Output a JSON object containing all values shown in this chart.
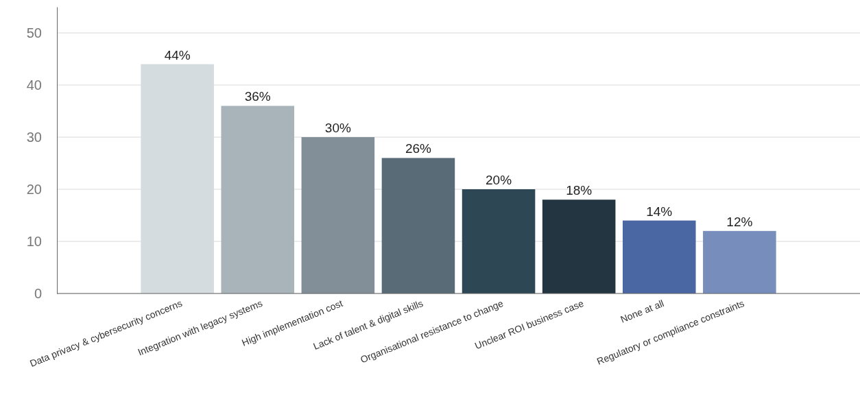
{
  "chart_data": {
    "type": "bar",
    "categories": [
      "Data privacy & cybersecurity concerns",
      "Integration with legacy systems",
      "High implementation cost",
      "Lack of talent & digital skills",
      "Organisational resistance to change",
      "Unclear ROI business case",
      "None at all",
      "Regulatory or compliance constraints"
    ],
    "values": [
      44,
      36,
      30,
      26,
      20,
      18,
      14,
      12
    ],
    "colors": [
      "#d4dcdf",
      "#a9b4ba",
      "#828f99",
      "#5a6b78",
      "#2d4755",
      "#233540",
      "#4a67a4",
      "#778dbb"
    ],
    "value_labels": [
      "44%",
      "36%",
      "30%",
      "26%",
      "20%",
      "18%",
      "14%",
      "12%"
    ],
    "ylim": [
      0,
      55
    ],
    "yticks": [
      0,
      10,
      20,
      30,
      40,
      50
    ],
    "grid": "y"
  }
}
